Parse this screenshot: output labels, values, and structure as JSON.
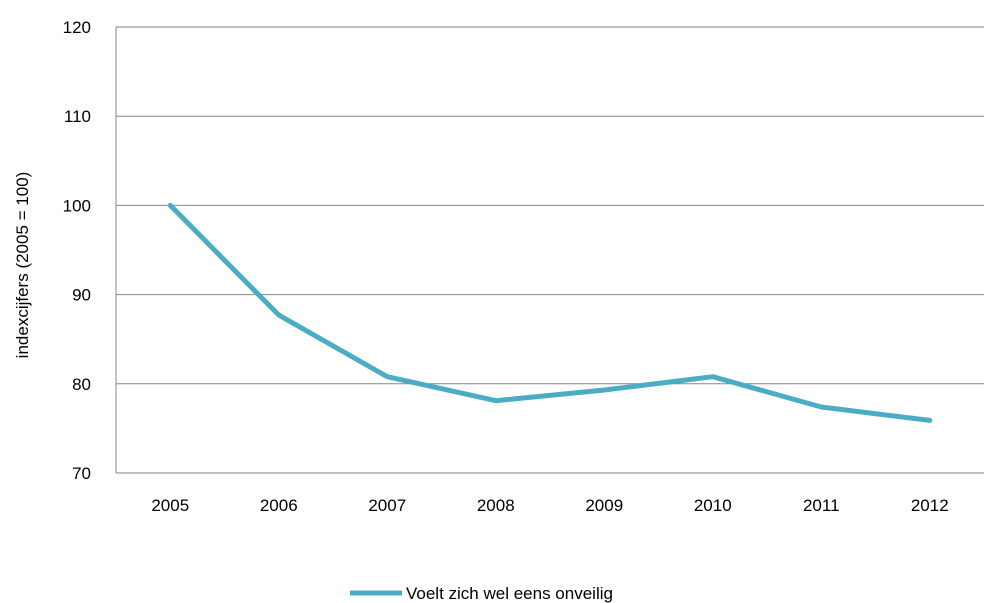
{
  "chart_data": {
    "type": "line",
    "title": "",
    "xlabel": "",
    "ylabel": "indexcijfers (2005 = 100)",
    "categories": [
      "2005",
      "2006",
      "2007",
      "2008",
      "2009",
      "2010",
      "2011",
      "2012"
    ],
    "ylim": [
      70,
      120
    ],
    "yticks": [
      70,
      80,
      90,
      100,
      110,
      120
    ],
    "grid": true,
    "legend_position": "bottom",
    "series": [
      {
        "name": "Voelt zich wel eens onveilig",
        "color": "#4BACC6",
        "values": [
          100,
          87.7,
          80.8,
          78.1,
          79.3,
          80.8,
          77.4,
          75.9
        ]
      }
    ]
  }
}
